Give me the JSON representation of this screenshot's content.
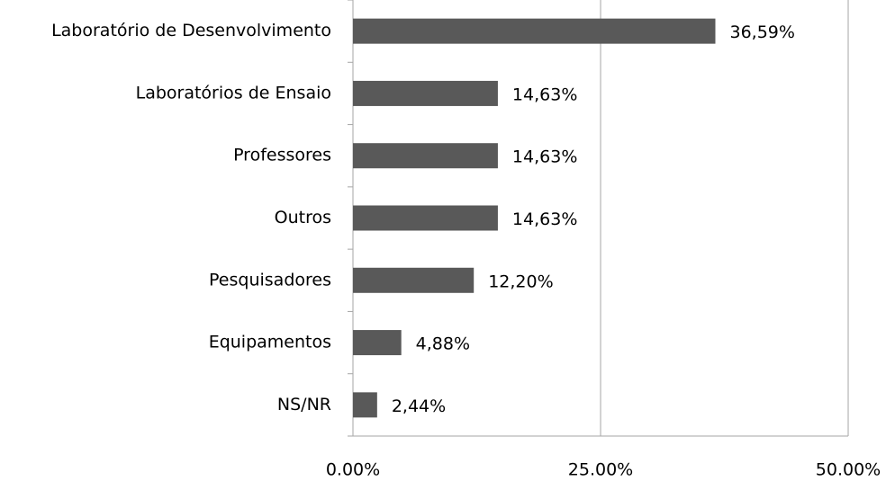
{
  "chart_data": {
    "type": "bar",
    "orientation": "horizontal",
    "categories": [
      "Laboratório de Desenvolvimento",
      "Laboratórios de Ensaio",
      "Professores",
      "Outros",
      "Pesquisadores",
      "Equipamentos",
      "NS/NR"
    ],
    "values": [
      36.59,
      14.63,
      14.63,
      14.63,
      12.2,
      4.88,
      2.44
    ],
    "value_labels": [
      "36,59%",
      "14,63%",
      "14,63%",
      "14,63%",
      "12,20%",
      "4,88%",
      "2,44%"
    ],
    "color": "#595959",
    "xlim": [
      0,
      50
    ],
    "xticks": [
      {
        "value": 0,
        "label": "0.00%"
      },
      {
        "value": 25,
        "label": "25.00%"
      },
      {
        "value": 50,
        "label": "50.00%"
      }
    ],
    "grid": true
  }
}
